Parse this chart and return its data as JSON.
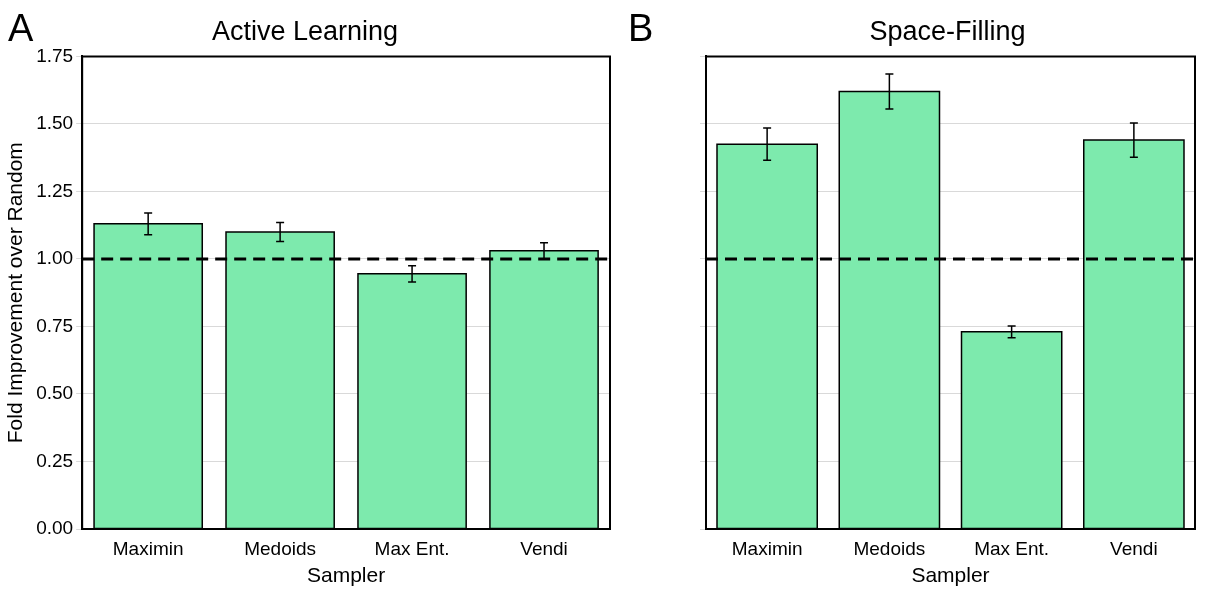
{
  "chart_data": [
    {
      "type": "bar",
      "title": "Active Learning",
      "xlabel": "Sampler",
      "ylabel": "Fold Improvement over Random",
      "annotations": [
        "A"
      ],
      "categories": [
        "Maximin",
        "Medoids",
        "Max Ent.",
        "Vendi"
      ],
      "values": [
        1.13,
        1.1,
        0.945,
        1.03
      ],
      "errors": [
        0.04,
        0.035,
        0.03,
        0.03
      ],
      "color": "#7deaad",
      "ylim": [
        0,
        1.75
      ],
      "yticks": [
        {
          "value": 0,
          "label": "0.00"
        },
        {
          "value": 0.25,
          "label": "0.25"
        },
        {
          "value": 0.5,
          "label": "0.50"
        },
        {
          "value": 0.75,
          "label": "0.75"
        },
        {
          "value": 1,
          "label": "1.00"
        },
        {
          "value": 1.25,
          "label": "1.25"
        },
        {
          "value": 1.5,
          "label": "1.50"
        },
        {
          "value": 1.75,
          "label": "1.75"
        }
      ],
      "grid": "y",
      "legend": false,
      "ref_lines": [
        {
          "axis": "y",
          "value": 1,
          "color": "#000000",
          "line_style": "dashed"
        }
      ]
    },
    {
      "type": "bar",
      "title": "Space-Filling",
      "xlabel": "Sampler",
      "annotations": [
        "B"
      ],
      "categories": [
        "Maximin",
        "Medoids",
        "Max Ent.",
        "Vendi"
      ],
      "values": [
        1.425,
        1.62,
        0.73,
        1.44
      ],
      "errors": [
        0.06,
        0.065,
        0.022,
        0.063
      ],
      "color": "#7deaad",
      "ylim": [
        0,
        1.75
      ],
      "yticks": [
        {
          "value": 0,
          "label": null
        },
        {
          "value": 0.25,
          "label": null
        },
        {
          "value": 0.5,
          "label": null
        },
        {
          "value": 0.75,
          "label": null
        },
        {
          "value": 1,
          "label": null
        },
        {
          "value": 1.25,
          "label": null
        },
        {
          "value": 1.5,
          "label": null
        },
        {
          "value": 1.75,
          "label": null
        }
      ],
      "grid": "y",
      "legend": false,
      "tick_labels": "x",
      "ref_lines": [
        {
          "axis": "y",
          "value": 1,
          "color": "#000000",
          "line_style": "dashed"
        }
      ]
    }
  ]
}
